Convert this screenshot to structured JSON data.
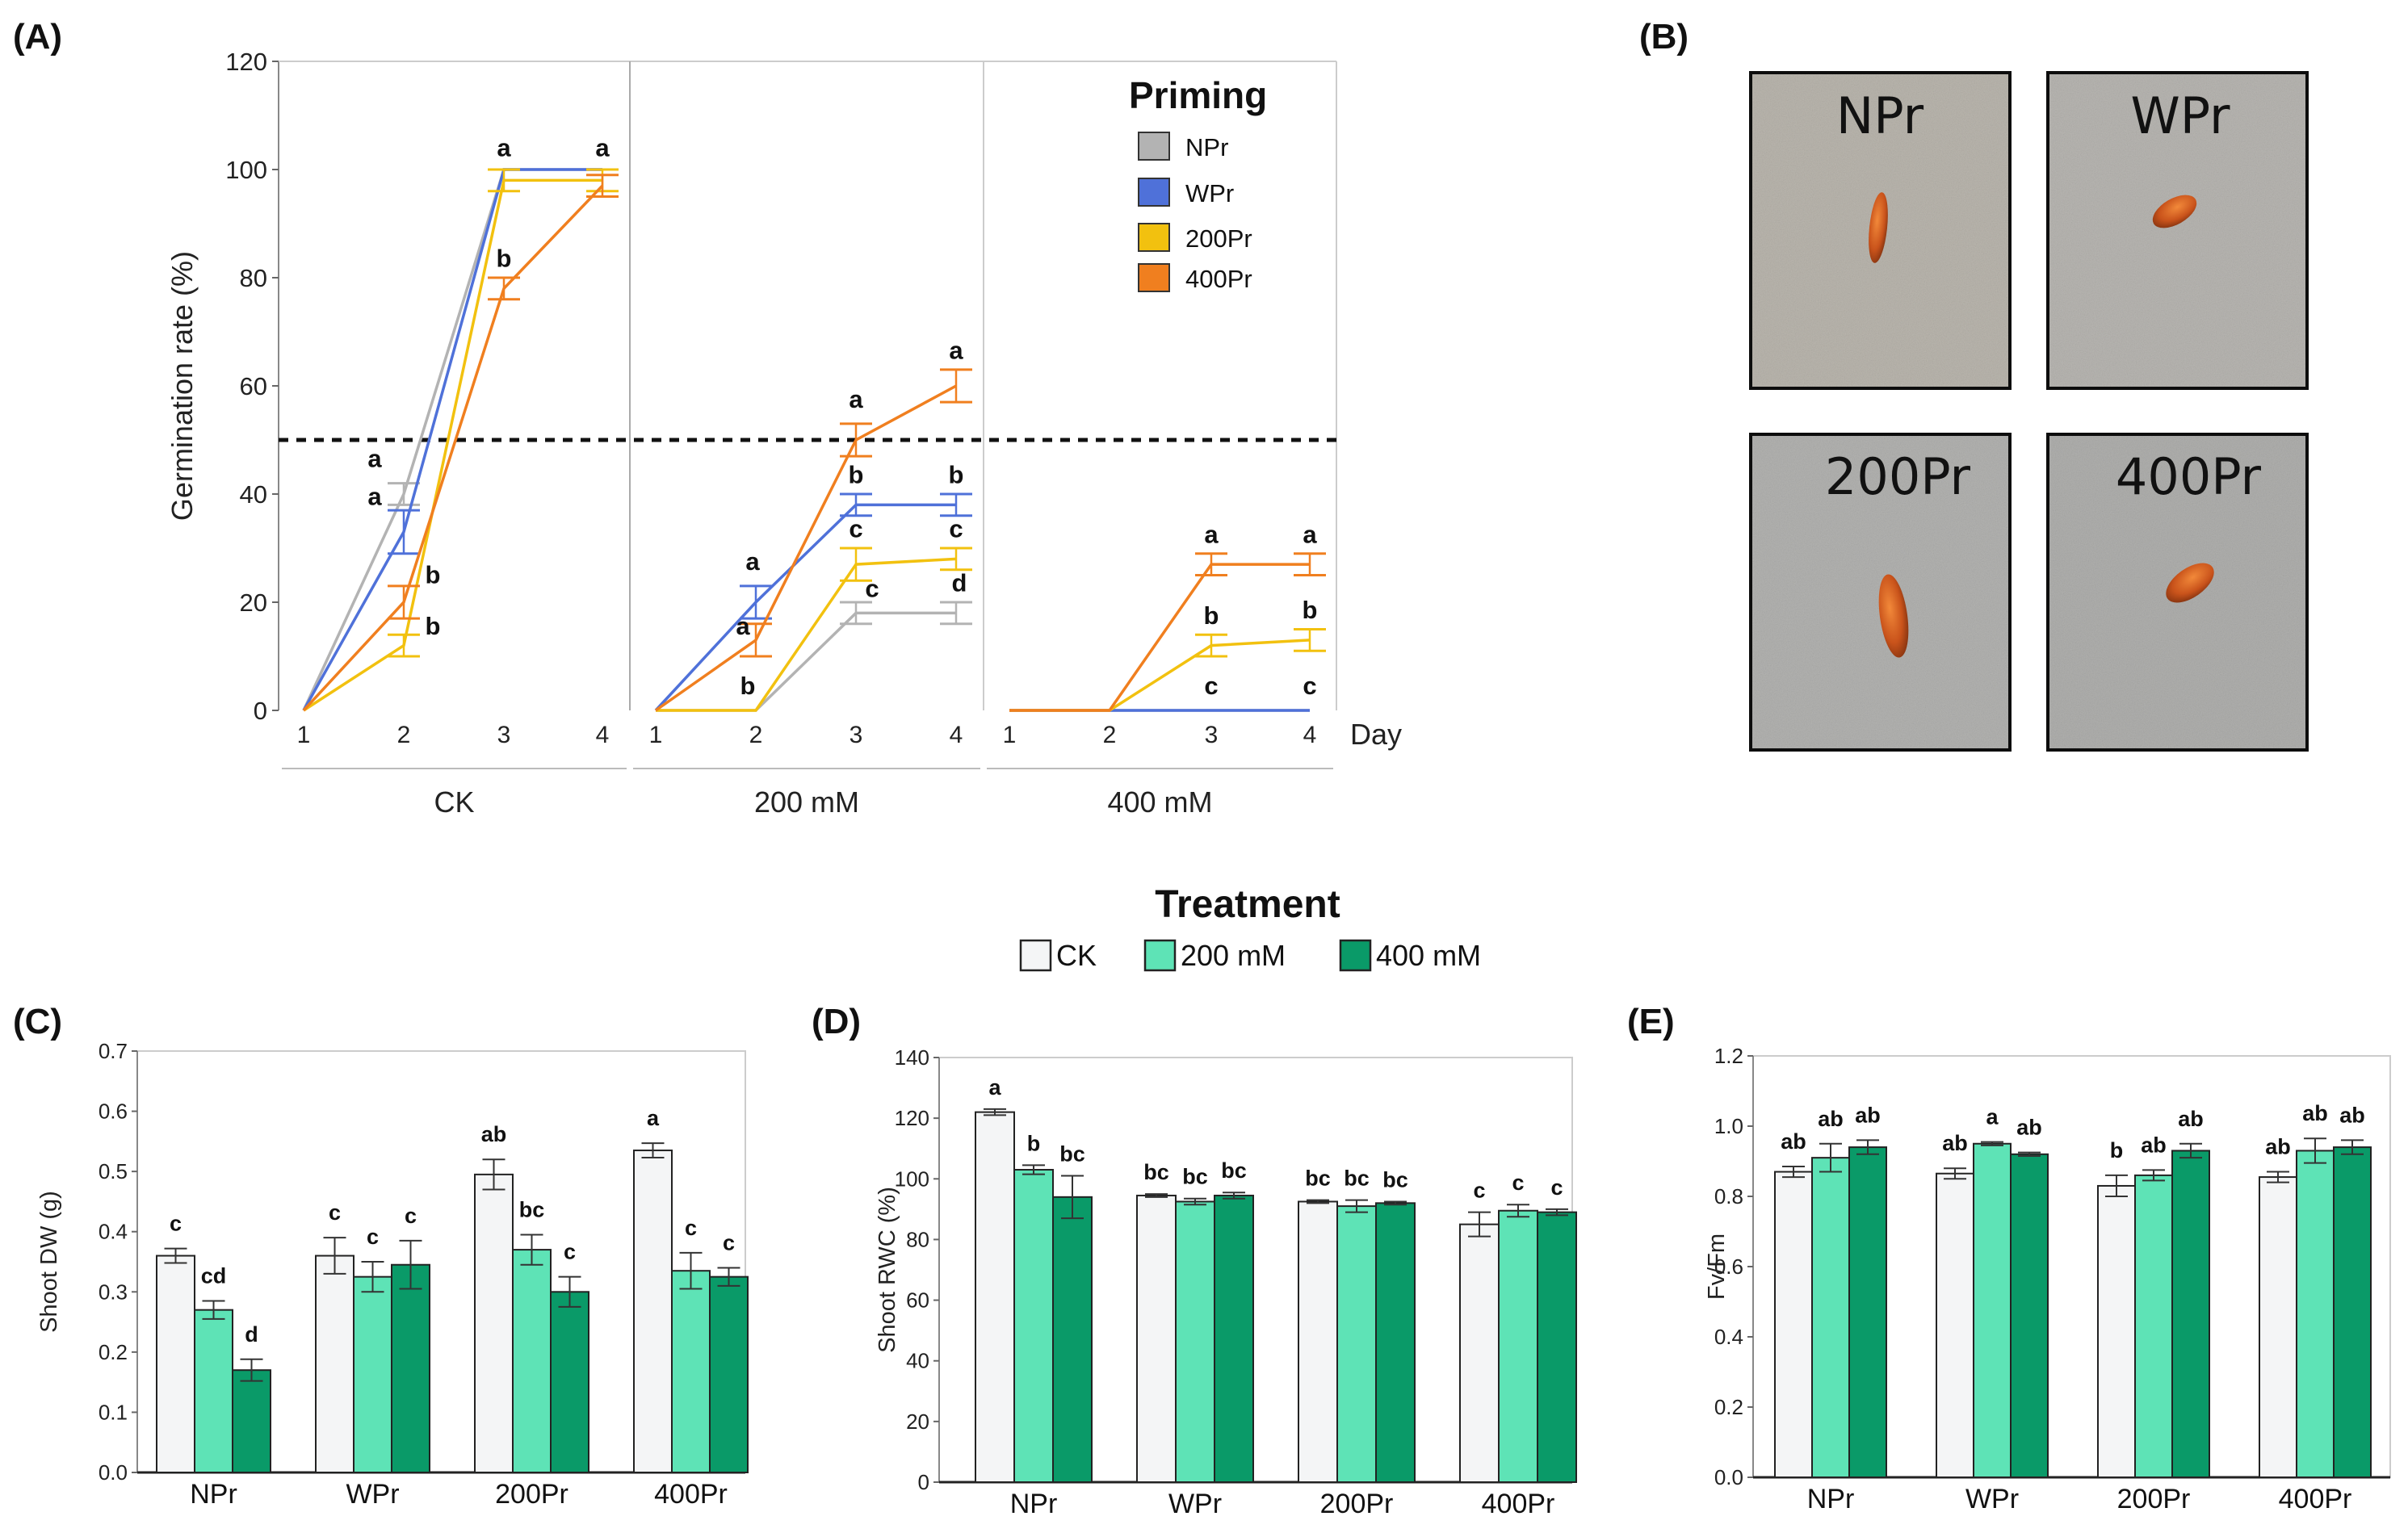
{
  "panels": {
    "A": "(A)",
    "B": "(B)",
    "C": "(C)",
    "D": "(D)",
    "E": "(E)"
  },
  "colors": {
    "NPr": "#b3b3b3",
    "WPr": "#4f71d9",
    "200Pr": "#f2c10f",
    "400Pr": "#f07f1f",
    "CK": "#f4f5f6",
    "200 mM": "#5ee3b6",
    "400 mM": "#0a9a68"
  },
  "photos": [
    {
      "label": "NPr"
    },
    {
      "label": "WPr"
    },
    {
      "label": "200Pr"
    },
    {
      "label": "400Pr"
    }
  ],
  "treatment_legend": {
    "title": "Treatment",
    "items": [
      "CK",
      "200 mM",
      "400 mM"
    ]
  },
  "chart_data": [
    {
      "id": "A",
      "type": "line",
      "ylabel": "Germination rate (%)",
      "xlabel": "Day",
      "ylim": [
        0,
        120
      ],
      "yticks": [
        0,
        20,
        40,
        60,
        80,
        100,
        120
      ],
      "reference_line": 50,
      "legend_title": "Priming",
      "series_names": [
        "NPr",
        "WPr",
        "200Pr",
        "400Pr"
      ],
      "groups": [
        {
          "name": "CK",
          "x": [
            1,
            2,
            3,
            4
          ],
          "series": [
            {
              "name": "NPr",
              "values": [
                0,
                40,
                100,
                100
              ],
              "err": [
                0,
                2,
                0,
                0
              ]
            },
            {
              "name": "WPr",
              "values": [
                0,
                33,
                100,
                100
              ],
              "err": [
                0,
                4,
                0,
                0
              ]
            },
            {
              "name": "200Pr",
              "values": [
                0,
                12,
                98,
                98
              ],
              "err": [
                0,
                2,
                2,
                2
              ]
            },
            {
              "name": "400Pr",
              "values": [
                0,
                20,
                78,
                97
              ],
              "err": [
                0,
                3,
                2,
                2
              ]
            }
          ],
          "letters": [
            {
              "x": 2,
              "y": 45,
              "text": "a"
            },
            {
              "x": 2,
              "y": 38,
              "text": "a"
            },
            {
              "x": 2,
              "y": 23.5,
              "text": "b"
            },
            {
              "x": 2,
              "y": 14,
              "text": "b"
            },
            {
              "x": 3,
              "y": 102.5,
              "text": "a"
            },
            {
              "x": 3,
              "y": 82,
              "text": "b"
            },
            {
              "x": 4,
              "y": 102.5,
              "text": "a"
            }
          ]
        },
        {
          "name": "200 mM",
          "x": [
            1,
            2,
            3,
            4
          ],
          "series": [
            {
              "name": "NPr",
              "values": [
                0,
                0,
                18,
                18
              ],
              "err": [
                0,
                0,
                2,
                2
              ]
            },
            {
              "name": "WPr",
              "values": [
                0,
                20,
                38,
                38
              ],
              "err": [
                0,
                3,
                2,
                2
              ]
            },
            {
              "name": "200Pr",
              "values": [
                0,
                0,
                27,
                28
              ],
              "err": [
                0,
                0,
                3,
                2
              ]
            },
            {
              "name": "400Pr",
              "values": [
                0,
                13,
                50,
                60
              ],
              "err": [
                0,
                3,
                3,
                3
              ]
            }
          ],
          "letters": [
            {
              "x": 2,
              "y": 26,
              "text": "a"
            },
            {
              "x": 2,
              "y": 14,
              "text": "a"
            },
            {
              "x": 2,
              "y": 3,
              "text": "b"
            },
            {
              "x": 3,
              "y": 56,
              "text": "a"
            },
            {
              "x": 3,
              "y": 42,
              "text": "b"
            },
            {
              "x": 3,
              "y": 32,
              "text": "c"
            },
            {
              "x": 3,
              "y": 21,
              "text": "c"
            },
            {
              "x": 4,
              "y": 65,
              "text": "a"
            },
            {
              "x": 4,
              "y": 42,
              "text": "b"
            },
            {
              "x": 4,
              "y": 32,
              "text": "c"
            },
            {
              "x": 4,
              "y": 22,
              "text": "d"
            }
          ]
        },
        {
          "name": "400 mM",
          "x": [
            1,
            2,
            3,
            4
          ],
          "series": [
            {
              "name": "NPr",
              "values": [
                0,
                0,
                0,
                0
              ],
              "err": [
                0,
                0,
                0,
                0
              ]
            },
            {
              "name": "WPr",
              "values": [
                0,
                0,
                0,
                0
              ],
              "err": [
                0,
                0,
                0,
                0
              ]
            },
            {
              "name": "200Pr",
              "values": [
                0,
                0,
                12,
                13
              ],
              "err": [
                0,
                0,
                2,
                2
              ]
            },
            {
              "name": "400Pr",
              "values": [
                0,
                0,
                27,
                27
              ],
              "err": [
                0,
                0,
                2,
                2
              ]
            }
          ],
          "letters": [
            {
              "x": 3,
              "y": 31,
              "text": "a"
            },
            {
              "x": 4,
              "y": 31,
              "text": "a"
            },
            {
              "x": 3,
              "y": 16,
              "text": "b"
            },
            {
              "x": 4,
              "y": 17,
              "text": "b"
            },
            {
              "x": 3,
              "y": 3,
              "text": "c"
            },
            {
              "x": 4,
              "y": 3,
              "text": "c"
            }
          ]
        }
      ]
    },
    {
      "id": "C",
      "type": "bar",
      "ylabel": "Shoot DW (g)",
      "ylim": [
        0,
        0.7
      ],
      "yticks": [
        "0.0",
        "0.1",
        "0.2",
        "0.3",
        "0.4",
        "0.5",
        "0.6",
        "0.7"
      ],
      "categories": [
        "NPr",
        "WPr",
        "200Pr",
        "400Pr"
      ],
      "series": [
        {
          "name": "CK",
          "values": [
            0.36,
            0.36,
            0.495,
            0.535
          ],
          "err": [
            0.012,
            0.03,
            0.025,
            0.012
          ],
          "letters": [
            "c",
            "c",
            "ab",
            "a"
          ]
        },
        {
          "name": "200 mM",
          "values": [
            0.27,
            0.325,
            0.37,
            0.335
          ],
          "err": [
            0.015,
            0.025,
            0.025,
            0.03
          ],
          "letters": [
            "cd",
            "c",
            "bc",
            "c"
          ]
        },
        {
          "name": "400 mM",
          "values": [
            0.17,
            0.345,
            0.3,
            0.325
          ],
          "err": [
            0.018,
            0.04,
            0.025,
            0.015
          ],
          "letters": [
            "d",
            "c",
            "c",
            "c"
          ]
        }
      ]
    },
    {
      "id": "D",
      "type": "bar",
      "ylabel": "Shoot RWC (%)",
      "ylim": [
        0,
        140
      ],
      "yticks": [
        "0",
        "20",
        "40",
        "60",
        "80",
        "100",
        "120",
        "140"
      ],
      "categories": [
        "NPr",
        "WPr",
        "200Pr",
        "400Pr"
      ],
      "series": [
        {
          "name": "CK",
          "values": [
            122,
            94.5,
            92.5,
            85
          ],
          "err": [
            1,
            0.5,
            0.5,
            4
          ],
          "letters": [
            "a",
            "bc",
            "bc",
            "c"
          ]
        },
        {
          "name": "200 mM",
          "values": [
            103,
            92.5,
            91,
            89.5
          ],
          "err": [
            1.5,
            1,
            2,
            2
          ],
          "letters": [
            "b",
            "bc",
            "bc",
            "c"
          ]
        },
        {
          "name": "400 mM",
          "values": [
            94,
            94.5,
            92,
            89
          ],
          "err": [
            7,
            1,
            0.5,
            1
          ],
          "letters": [
            "bc",
            "bc",
            "bc",
            "c"
          ]
        }
      ]
    },
    {
      "id": "E",
      "type": "bar",
      "ylabel": "Fv/Fm",
      "ylim": [
        0,
        1.2
      ],
      "yticks": [
        "0.0",
        "0.2",
        "0.4",
        "0.6",
        "0.8",
        "1.0",
        "1.2"
      ],
      "categories": [
        "NPr",
        "WPr",
        "200Pr",
        "400Pr"
      ],
      "series": [
        {
          "name": "CK",
          "values": [
            0.87,
            0.865,
            0.83,
            0.855
          ],
          "err": [
            0.015,
            0.015,
            0.03,
            0.015
          ],
          "letters": [
            "ab",
            "ab",
            "b",
            "ab"
          ]
        },
        {
          "name": "200 mM",
          "values": [
            0.91,
            0.95,
            0.86,
            0.93
          ],
          "err": [
            0.04,
            0.005,
            0.015,
            0.035
          ],
          "letters": [
            "ab",
            "a",
            "ab",
            "ab"
          ]
        },
        {
          "name": "400 mM",
          "values": [
            0.94,
            0.92,
            0.93,
            0.94
          ],
          "err": [
            0.02,
            0.005,
            0.02,
            0.02
          ],
          "letters": [
            "ab",
            "ab",
            "ab",
            "ab"
          ]
        }
      ]
    }
  ]
}
